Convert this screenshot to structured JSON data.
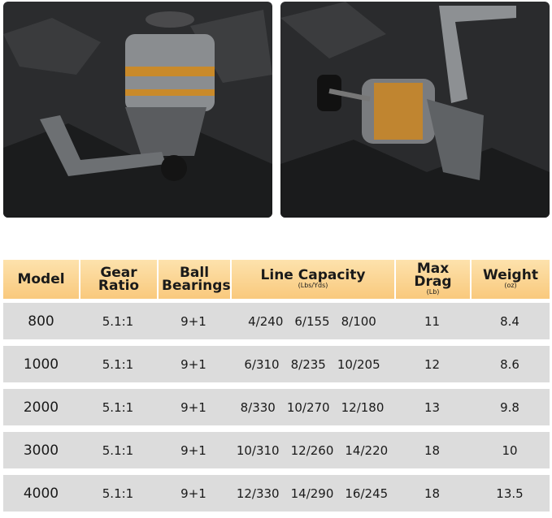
{
  "table": {
    "header": [
      {
        "label": "Model"
      },
      {
        "label": "Gear Ratio"
      },
      {
        "label": "Ball Bearings"
      },
      {
        "label": "Line Capacity",
        "unit": "(Lbs/Yds)"
      },
      {
        "label": "Max Drag",
        "unit": "(Lb)"
      },
      {
        "label": "Weight",
        "unit": "(oz)"
      }
    ],
    "rows": [
      [
        "800",
        "5.1:1",
        "9+1",
        [
          "4/240",
          "6/155",
          "8/100"
        ],
        "11",
        "8.4"
      ],
      [
        "1000",
        "5.1:1",
        "9+1",
        [
          "6/310",
          "8/235",
          "10/205"
        ],
        "12",
        "8.6"
      ],
      [
        "2000",
        "5.1:1",
        "9+1",
        [
          "8/330",
          "10/270",
          "12/180"
        ],
        "13",
        "9.8"
      ],
      [
        "3000",
        "5.1:1",
        "9+1",
        [
          "10/310",
          "12/260",
          "14/220"
        ],
        "18",
        "10"
      ],
      [
        "4000",
        "5.1:1",
        "9+1",
        [
          "12/330",
          "14/290",
          "16/245"
        ],
        "18",
        "13.5"
      ]
    ]
  }
}
